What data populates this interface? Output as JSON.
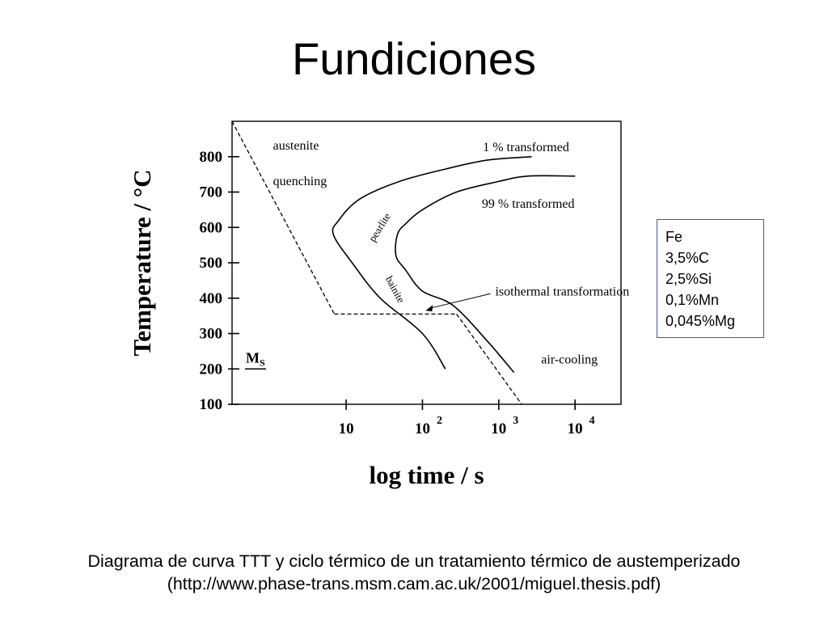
{
  "slide": {
    "title": "Fundiciones",
    "caption_line1": "Diagrama de curva TTT y ciclo térmico de un tratamiento térmico de austemperizado",
    "caption_line2": "(http://www.phase-trans.msm.cam.ac.uk/2001/miguel.thesis.pdf)"
  },
  "composition": [
    "Fe",
    "3,5%C",
    "2,5%Si",
    "0,1%Mn",
    "0,045%Mg"
  ],
  "chart_data": {
    "type": "line",
    "xlabel": "log time / s",
    "ylabel": "Temperature / °C",
    "x_scale": "log",
    "xlim": [
      0.32,
      40000
    ],
    "ylim": [
      100,
      900
    ],
    "grid": false,
    "x_ticks": [
      {
        "value": 10,
        "base": "10",
        "exp": ""
      },
      {
        "value": 100,
        "base": "10",
        "exp": "2"
      },
      {
        "value": 1000,
        "base": "10",
        "exp": "3"
      },
      {
        "value": 10000,
        "base": "10",
        "exp": "4"
      }
    ],
    "y_ticks": [
      100,
      200,
      300,
      400,
      500,
      600,
      700,
      800
    ],
    "series": [
      {
        "name": "1 % transformed",
        "style": "solid",
        "points": [
          [
            200,
            200
          ],
          [
            100,
            300
          ],
          [
            28,
            400
          ],
          [
            12,
            500
          ],
          [
            6.8,
            580
          ],
          [
            8,
            620
          ],
          [
            15,
            680
          ],
          [
            50,
            730
          ],
          [
            200,
            765
          ],
          [
            700,
            790
          ],
          [
            2700,
            800
          ]
        ]
      },
      {
        "name": "99 % transformed",
        "style": "solid",
        "points": [
          [
            1580,
            190
          ],
          [
            700,
            280
          ],
          [
            250,
            380
          ],
          [
            100,
            420
          ],
          [
            60,
            480
          ],
          [
            45,
            520
          ],
          [
            47,
            580
          ],
          [
            60,
            610
          ],
          [
            100,
            650
          ],
          [
            280,
            700
          ],
          [
            1000,
            730
          ],
          [
            2400,
            745
          ],
          [
            10000,
            745
          ]
        ]
      },
      {
        "name": "quenching",
        "style": "dashed",
        "points": [
          [
            0.32,
            900
          ],
          [
            7,
            355
          ]
        ]
      },
      {
        "name": "isothermal transformation",
        "style": "dashed",
        "points": [
          [
            7,
            355
          ],
          [
            280,
            355
          ]
        ]
      },
      {
        "name": "air-cooling",
        "style": "dashed",
        "points": [
          [
            280,
            355
          ],
          [
            2000,
            100
          ]
        ]
      }
    ],
    "annotations": [
      {
        "text": "austenite",
        "x": 1.1,
        "y": 820
      },
      {
        "text": "quenching",
        "x": 1.1,
        "y": 720
      },
      {
        "text": "1 % transformed",
        "x": 620,
        "y": 815
      },
      {
        "text": "99 % transformed",
        "x": 600,
        "y": 655
      },
      {
        "text": "pearlite",
        "x": 30,
        "y": 595,
        "rotate": -58
      },
      {
        "text": "bainite",
        "x": 40,
        "y": 420,
        "rotate": 62
      },
      {
        "text": "isothermal transformation",
        "x": 900,
        "y": 408
      },
      {
        "text": "air-cooling",
        "x": 3600,
        "y": 215
      }
    ],
    "ms_label": "M",
    "ms_sub": "S",
    "ms_temperature": 200
  }
}
